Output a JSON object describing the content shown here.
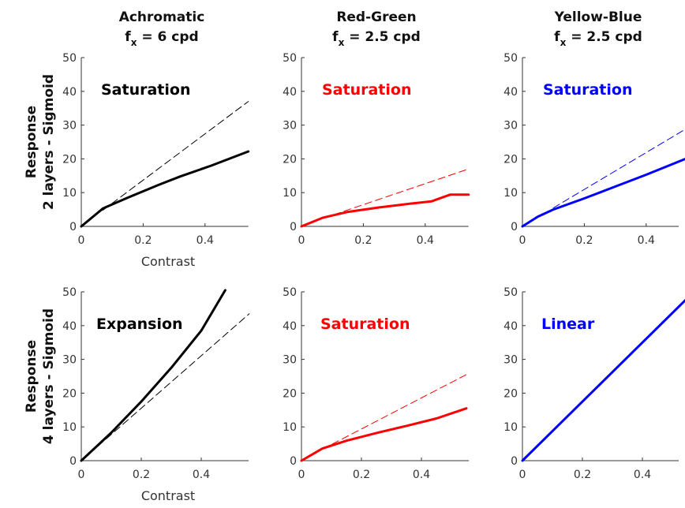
{
  "figure": {
    "columns": [
      {
        "title_line1": "Achromatic",
        "title_line2_main": "f",
        "title_line2_sub": "x",
        "title_line2_rest": " = 6 cpd"
      },
      {
        "title_line1": "Red-Green",
        "title_line2_main": "f",
        "title_line2_sub": "x",
        "title_line2_rest": " = 2.5 cpd"
      },
      {
        "title_line1": "Yellow-Blue",
        "title_line2_main": "f",
        "title_line2_sub": "x",
        "title_line2_rest": " = 2.5 cpd"
      }
    ],
    "rows": [
      {
        "label_line1": "Response",
        "label_line2": "2 layers - Sigmoid"
      },
      {
        "label_line1": "Response",
        "label_line2": "4 layers - Sigmoid"
      }
    ],
    "colors": {
      "achromatic": "#000000",
      "red_green": "#ff0000",
      "yellow_blue": "#0000ff",
      "axis": "#333333"
    }
  },
  "chart_data": [
    {
      "type": "line",
      "row": 0,
      "col": 0,
      "color": "#000000",
      "annotation": "Saturation",
      "xlabel": "Contrast",
      "ylabel": "",
      "xlim": [
        0,
        0.54
      ],
      "ylim": [
        0,
        50
      ],
      "xticks": [
        "0",
        "0.2",
        "0.4"
      ],
      "yticks": [
        "0",
        "10",
        "20",
        "30",
        "40",
        "50"
      ],
      "series": [
        {
          "style": "solid",
          "x": [
            0,
            0.07,
            0.15,
            0.25,
            0.32,
            0.42,
            0.54
          ],
          "y": [
            0,
            5.3,
            8.5,
            12.3,
            14.8,
            18,
            22.2
          ]
        },
        {
          "style": "dashed",
          "x": [
            0.07,
            0.54
          ],
          "y": [
            4.8,
            37
          ]
        }
      ]
    },
    {
      "type": "line",
      "row": 0,
      "col": 1,
      "color": "#ff0000",
      "annotation": "Saturation",
      "xlabel": "",
      "ylabel": "",
      "xlim": [
        0,
        0.54
      ],
      "ylim": [
        0,
        50
      ],
      "xticks": [
        "0",
        "0.2",
        "0.4"
      ],
      "yticks": [
        "0",
        "10",
        "20",
        "30",
        "40",
        "50"
      ],
      "series": [
        {
          "style": "solid",
          "x": [
            0,
            0.07,
            0.15,
            0.25,
            0.35,
            0.42,
            0.48,
            0.54
          ],
          "y": [
            0,
            2.6,
            4.3,
            5.6,
            6.7,
            7.4,
            9.4,
            9.4
          ]
        },
        {
          "style": "dashed",
          "x": [
            0.07,
            0.54
          ],
          "y": [
            2.4,
            17
          ]
        }
      ]
    },
    {
      "type": "line",
      "row": 0,
      "col": 2,
      "color": "#0000ff",
      "annotation": "Saturation",
      "xlabel": "",
      "ylabel": "",
      "xlim": [
        0,
        0.54
      ],
      "ylim": [
        0,
        50
      ],
      "xticks": [
        "0",
        "0.2",
        "0.4"
      ],
      "yticks": [
        "0",
        "10",
        "20",
        "30",
        "40",
        "50"
      ],
      "series": [
        {
          "style": "solid",
          "x": [
            0,
            0.05,
            0.1,
            0.2,
            0.3,
            0.4,
            0.54
          ],
          "y": [
            0,
            2.9,
            5,
            8.3,
            11.8,
            15.3,
            20.5
          ]
        },
        {
          "style": "dashed",
          "x": [
            0.1,
            0.54
          ],
          "y": [
            5.5,
            29.5
          ]
        }
      ]
    },
    {
      "type": "line",
      "row": 1,
      "col": 0,
      "color": "#000000",
      "annotation": "Expansion",
      "xlabel": "Contrast",
      "ylabel": "",
      "xlim": [
        0,
        0.56
      ],
      "ylim": [
        0,
        50
      ],
      "xticks": [
        "0",
        "0.2",
        "0.4"
      ],
      "yticks": [
        "0",
        "10",
        "20",
        "30",
        "40",
        "50"
      ],
      "series": [
        {
          "style": "solid",
          "x": [
            0,
            0.1,
            0.2,
            0.3,
            0.4,
            0.48
          ],
          "y": [
            0,
            8.3,
            17.5,
            27.5,
            38.5,
            50.5
          ]
        },
        {
          "style": "dashed",
          "x": [
            0,
            0.56
          ],
          "y": [
            0,
            43.5
          ]
        }
      ]
    },
    {
      "type": "line",
      "row": 1,
      "col": 1,
      "color": "#ff0000",
      "annotation": "Saturation",
      "xlabel": "",
      "ylabel": "",
      "xlim": [
        0,
        0.56
      ],
      "ylim": [
        0,
        50
      ],
      "xticks": [
        "0",
        "0.2",
        "0.4"
      ],
      "yticks": [
        "0",
        "10",
        "20",
        "30",
        "40",
        "50"
      ],
      "series": [
        {
          "style": "solid",
          "x": [
            0,
            0.07,
            0.15,
            0.25,
            0.35,
            0.45,
            0.55
          ],
          "y": [
            0,
            3.6,
            5.9,
            8.2,
            10.3,
            12.5,
            15.5
          ]
        },
        {
          "style": "dashed",
          "x": [
            0.07,
            0.55
          ],
          "y": [
            3.4,
            25.5
          ]
        }
      ]
    },
    {
      "type": "line",
      "row": 1,
      "col": 2,
      "color": "#0000ff",
      "annotation": "Linear",
      "xlabel": "",
      "ylabel": "",
      "xlim": [
        0,
        0.56
      ],
      "ylim": [
        0,
        50
      ],
      "xticks": [
        "0",
        "0.2",
        "0.4"
      ],
      "yticks": [
        "0",
        "10",
        "20",
        "30",
        "40",
        "50"
      ],
      "series": [
        {
          "style": "solid",
          "x": [
            0,
            0.56
          ],
          "y": [
            0,
            49
          ]
        },
        {
          "style": "dashed",
          "x": [
            0,
            0.56
          ],
          "y": [
            0,
            49
          ]
        }
      ]
    }
  ]
}
